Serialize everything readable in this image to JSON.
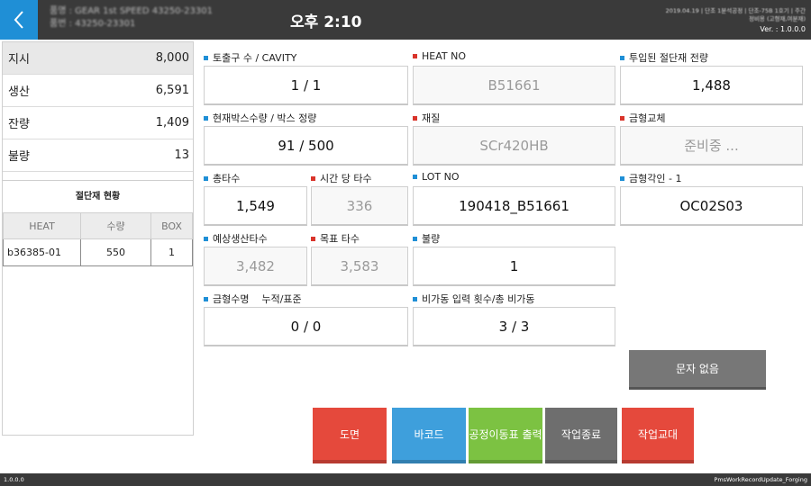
{
  "header": {
    "back_icon": "chevron-left-icon",
    "product_name": "품명 : GEAR 1st SPEED 43250-23301",
    "product_no": "품번 : 43250-23301",
    "clock": "오후 2:10",
    "sysinfo_line1": "2019.04.19 | 단조 1분석공정 | 단조-75B 1호기 | 주간",
    "sysinfo_line2": "정비용 (고형재,여분재)",
    "version": "Ver. : 1.0.0.0"
  },
  "summary": [
    {
      "label": "지시",
      "value": "8,000"
    },
    {
      "label": "생산",
      "value": "6,591"
    },
    {
      "label": "잔량",
      "value": "1,409"
    },
    {
      "label": "불량",
      "value": "13"
    }
  ],
  "cut_status": {
    "title": "절단재 현황",
    "columns": [
      "HEAT",
      "수량",
      "BOX"
    ],
    "rows": [
      {
        "heat": "b36385-01",
        "qty": "550",
        "box": "1"
      }
    ]
  },
  "fields": {
    "cavity": {
      "label": "토출구 수 / CAVITY",
      "value": "1 / 1"
    },
    "heat_no": {
      "label": "HEAT NO",
      "value": "B51661"
    },
    "input_weight": {
      "label": "투입된 절단재 전량",
      "value": "1,488"
    },
    "box_qty": {
      "label": "현재박스수량 / 박스 정량",
      "value": "91 / 500"
    },
    "material": {
      "label": "재질",
      "value": "SCr420HB"
    },
    "die_change": {
      "label": "금형교체",
      "value": "준비중 ..."
    },
    "total_shots": {
      "label": "총타수",
      "value": "1,549"
    },
    "shots_per_hour": {
      "label": "시간 당 타수",
      "value": "336"
    },
    "lot_no": {
      "label": "LOT NO",
      "value": "190418_B51661"
    },
    "die_mark": {
      "label": "금형각인 - 1",
      "value": "OC02S03"
    },
    "expected_shots": {
      "label": "예상생산타수",
      "value": "3,482"
    },
    "target_shots": {
      "label": "목표 타수",
      "value": "3,583"
    },
    "defect": {
      "label": "불량",
      "value": "1"
    },
    "die_life": {
      "label": "금형수명    누적/표준",
      "value": "0 / 0"
    },
    "downtime": {
      "label": "비가동 입력 횟수/총 비가동",
      "value": "3 / 3"
    }
  },
  "message_button": "문자 없음",
  "actions": [
    {
      "label": "도면",
      "color": "#e5493c"
    },
    {
      "label": "바코드",
      "color": "#3e9fdc"
    },
    {
      "label": "공정이동표 출력",
      "color": "#7cc242"
    },
    {
      "label": "작업종료",
      "color": "#6e6e6e"
    },
    {
      "label": "작업교대",
      "color": "#e5493c"
    }
  ],
  "footer": {
    "left": "1.0.0.0",
    "right": "PmsWorkRecordUpdate_Forging"
  }
}
